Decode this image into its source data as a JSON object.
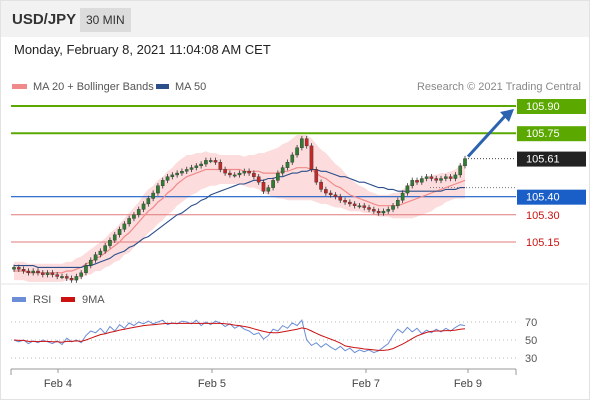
{
  "header": {
    "symbol": "USD/JPY",
    "timeframe": "30 MIN",
    "datetime": "Monday, February 8, 2021 11:04:08 AM CET"
  },
  "legend": {
    "items": [
      {
        "label": "MA 20 + Bollinger Bands",
        "color": "#f08a8a"
      },
      {
        "label": "MA 50",
        "color": "#2c4f8c"
      }
    ],
    "credit": "Research © 2021 Trading Central"
  },
  "rsi_legend": [
    {
      "label": "RSI",
      "color": "#6b8ed6"
    },
    {
      "label": "9MA",
      "color": "#cc1111"
    }
  ],
  "colors": {
    "green": "#5aa800",
    "blue": "#1a5fc8",
    "red": "#cc1111",
    "dark": "#222222",
    "bull": "#2e7d32",
    "bear": "#c62828",
    "arrow": "#2c63b0"
  },
  "chart_data": [
    {
      "type": "candlestick",
      "ylim": [
        104.99,
        105.99
      ],
      "price_levels": [
        {
          "value": 105.9,
          "label": "105.90",
          "style": "green"
        },
        {
          "value": 105.75,
          "label": "105.75",
          "style": "green"
        },
        {
          "value": 105.61,
          "label": "105.61",
          "style": "current"
        },
        {
          "value": 105.4,
          "label": "105.40",
          "style": "blue"
        },
        {
          "value": 105.3,
          "label": "105.30",
          "style": "red"
        },
        {
          "value": 105.15,
          "label": "105.15",
          "style": "red"
        }
      ],
      "x_ticks": [
        "Feb 4",
        "Feb 5",
        "Feb 7",
        "Feb 9"
      ],
      "close": [
        105.01,
        105.0,
        104.99,
        104.98,
        104.99,
        104.98,
        104.97,
        104.98,
        104.97,
        104.96,
        104.96,
        104.95,
        104.94,
        104.96,
        104.98,
        105.02,
        105.05,
        105.08,
        105.1,
        105.13,
        105.16,
        105.19,
        105.22,
        105.25,
        105.28,
        105.3,
        105.33,
        105.36,
        105.39,
        105.42,
        105.46,
        105.49,
        105.51,
        105.52,
        105.53,
        105.54,
        105.55,
        105.56,
        105.57,
        105.58,
        105.6,
        105.6,
        105.59,
        105.55,
        105.53,
        105.52,
        105.52,
        105.53,
        105.54,
        105.53,
        105.51,
        105.48,
        105.43,
        105.45,
        105.49,
        105.53,
        105.56,
        105.59,
        105.63,
        105.67,
        105.72,
        105.68,
        105.55,
        105.48,
        105.44,
        105.42,
        105.41,
        105.4,
        105.38,
        105.37,
        105.36,
        105.35,
        105.35,
        105.34,
        105.33,
        105.32,
        105.31,
        105.32,
        105.33,
        105.35,
        105.38,
        105.42,
        105.46,
        105.49,
        105.48,
        105.5,
        105.51,
        105.5,
        105.49,
        105.5,
        105.51,
        105.5,
        105.52,
        105.57,
        105.61
      ],
      "ma20": [
        104.99,
        104.99,
        104.99,
        104.98,
        104.98,
        104.98,
        104.98,
        104.98,
        104.98,
        104.98,
        104.98,
        104.99,
        104.99,
        105.0,
        105.01,
        105.03,
        105.04,
        105.06,
        105.07,
        105.09,
        105.11,
        105.13,
        105.15,
        105.18,
        105.2,
        105.23,
        105.26,
        105.29,
        105.32,
        105.34,
        105.37,
        105.39,
        105.42,
        105.44,
        105.47,
        105.49,
        105.51,
        105.52,
        105.53,
        105.54,
        105.55,
        105.55,
        105.55,
        105.55,
        105.55,
        105.55,
        105.55,
        105.55,
        105.54,
        105.54,
        105.54,
        105.54,
        105.53,
        105.53,
        105.53,
        105.53,
        105.54,
        105.54,
        105.55,
        105.56,
        105.56,
        105.56,
        105.55,
        105.53,
        105.51,
        105.5,
        105.48,
        105.46,
        105.45,
        105.43,
        105.41,
        105.4,
        105.39,
        105.38,
        105.37,
        105.36,
        105.35,
        105.35,
        105.35,
        105.35,
        105.35,
        105.36,
        105.37,
        105.38,
        105.39,
        105.4,
        105.41,
        105.42,
        105.43,
        105.44,
        105.45,
        105.46,
        105.47,
        105.48,
        105.49
      ],
      "ma50": [
        105.02,
        105.02,
        105.02,
        105.02,
        105.02,
        105.01,
        105.01,
        105.01,
        105.01,
        105.01,
        105.01,
        105.01,
        105.01,
        105.01,
        105.01,
        105.02,
        105.02,
        105.03,
        105.04,
        105.05,
        105.06,
        105.08,
        105.09,
        105.1,
        105.12,
        105.13,
        105.15,
        105.17,
        105.18,
        105.2,
        105.22,
        105.24,
        105.26,
        105.28,
        105.3,
        105.31,
        105.33,
        105.35,
        105.36,
        105.38,
        105.39,
        105.41,
        105.42,
        105.43,
        105.44,
        105.45,
        105.46,
        105.47,
        105.47,
        105.48,
        105.49,
        105.49,
        105.49,
        105.5,
        105.5,
        105.51,
        105.51,
        105.52,
        105.53,
        105.53,
        105.54,
        105.54,
        105.55,
        105.55,
        105.54,
        105.54,
        105.53,
        105.52,
        105.51,
        105.51,
        105.5,
        105.49,
        105.48,
        105.48,
        105.47,
        105.46,
        105.45,
        105.45,
        105.44,
        105.44,
        105.43,
        105.43,
        105.43,
        105.43,
        105.43,
        105.43,
        105.43,
        105.43,
        105.43,
        105.43,
        105.44,
        105.44,
        105.44,
        105.45,
        105.45
      ],
      "bb_width": [
        0.05,
        0.05,
        0.05,
        0.05,
        0.05,
        0.05,
        0.05,
        0.05,
        0.05,
        0.05,
        0.05,
        0.05,
        0.05,
        0.06,
        0.06,
        0.06,
        0.07,
        0.07,
        0.08,
        0.08,
        0.09,
        0.09,
        0.1,
        0.1,
        0.11,
        0.11,
        0.11,
        0.12,
        0.12,
        0.12,
        0.12,
        0.12,
        0.12,
        0.12,
        0.12,
        0.12,
        0.12,
        0.11,
        0.11,
        0.1,
        0.1,
        0.09,
        0.09,
        0.08,
        0.08,
        0.08,
        0.08,
        0.08,
        0.08,
        0.09,
        0.09,
        0.1,
        0.11,
        0.12,
        0.13,
        0.14,
        0.15,
        0.16,
        0.17,
        0.18,
        0.18,
        0.18,
        0.17,
        0.16,
        0.15,
        0.14,
        0.13,
        0.12,
        0.11,
        0.1,
        0.09,
        0.08,
        0.07,
        0.07,
        0.06,
        0.06,
        0.06,
        0.06,
        0.06,
        0.07,
        0.07,
        0.08,
        0.09,
        0.1,
        0.1,
        0.1,
        0.1,
        0.1,
        0.09,
        0.09,
        0.08,
        0.08,
        0.08,
        0.09,
        0.1
      ]
    },
    {
      "type": "line",
      "title": "RSI",
      "ylim": [
        20,
        80
      ],
      "y_ticks": [
        70,
        50,
        30
      ],
      "x_ticks": [
        "Feb 4",
        "Feb 5",
        "Feb 7",
        "Feb 9"
      ],
      "series": [
        {
          "name": "RSI",
          "values": [
            50,
            48,
            50,
            46,
            49,
            47,
            50,
            48,
            46,
            49,
            45,
            52,
            48,
            50,
            47,
            55,
            60,
            58,
            63,
            57,
            65,
            60,
            67,
            63,
            69,
            66,
            70,
            68,
            71,
            68,
            70,
            72,
            67,
            69,
            68,
            71,
            70,
            68,
            72,
            66,
            70,
            67,
            71,
            69,
            65,
            68,
            63,
            66,
            62,
            60,
            56,
            58,
            51,
            55,
            62,
            60,
            66,
            63,
            69,
            66,
            72,
            50,
            44,
            47,
            42,
            46,
            42,
            39,
            43,
            38,
            41,
            36,
            39,
            37,
            39,
            36,
            38,
            42,
            46,
            55,
            62,
            58,
            64,
            59,
            63,
            57,
            61,
            58,
            62,
            59,
            63,
            60,
            64,
            67,
            66
          ]
        },
        {
          "name": "9MA",
          "values": [
            50,
            49.5,
            49.5,
            48.5,
            48.5,
            48.2,
            48.5,
            48.5,
            48,
            48,
            47.5,
            48.5,
            48.5,
            49,
            48.5,
            50,
            52,
            54,
            56,
            57,
            58.5,
            59.5,
            61,
            62,
            63,
            64,
            65,
            66,
            66.5,
            67,
            67.5,
            68,
            68.5,
            68.5,
            68.5,
            68.5,
            68.5,
            68.5,
            68.5,
            68.5,
            68.5,
            68.5,
            68.5,
            68.5,
            68,
            67.5,
            66.5,
            66,
            65,
            64,
            62.5,
            61,
            59.5,
            58.5,
            58,
            58,
            59,
            60,
            61,
            62,
            63.5,
            62.5,
            60,
            57.5,
            55,
            53,
            51,
            49,
            46.5,
            43.5,
            42.5,
            41.5,
            41,
            40,
            39.5,
            39,
            38.5,
            38.5,
            39,
            40.5,
            43,
            45.5,
            48.5,
            51.5,
            54.5,
            56.5,
            58.5,
            59.5,
            60,
            60,
            60.5,
            60.5,
            61,
            62,
            62.5
          ]
        }
      ]
    }
  ]
}
